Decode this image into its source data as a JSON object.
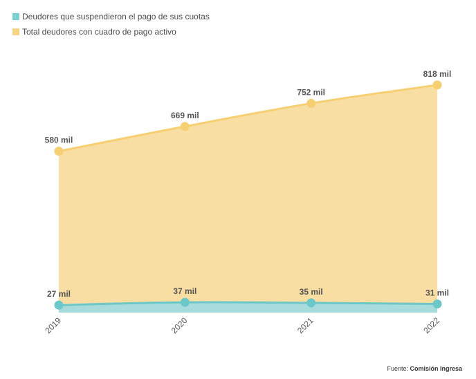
{
  "legend": [
    {
      "label": "Deudores que suspendieron el pago de sus cuotas",
      "color": "#7ecfd0"
    },
    {
      "label": "Total deudores con cuadro de pago activo",
      "color": "#f7d486"
    }
  ],
  "source": {
    "prefix": "Fuente: ",
    "name": "Comisión Ingresa"
  },
  "chart_data": {
    "type": "area",
    "categories": [
      "2019",
      "2020",
      "2021",
      "2022"
    ],
    "series": [
      {
        "name": "Total deudores con cuadro de pago activo",
        "values": [
          580,
          669,
          752,
          818
        ],
        "labels": [
          "580 mil",
          "669 mil",
          "752 mil",
          "818 mil"
        ],
        "fill": "#f9dea3",
        "line": "#f5cf72"
      },
      {
        "name": "Deudores que suspendieron el pago de sus cuotas",
        "values": [
          27,
          37,
          35,
          31
        ],
        "labels": [
          "27 mil",
          "37 mil",
          "35 mil",
          "31 mil"
        ],
        "fill": "#a8dbdc",
        "line": "#6cc7c9"
      }
    ],
    "ylim": [
      0,
      850
    ],
    "grid": false
  }
}
